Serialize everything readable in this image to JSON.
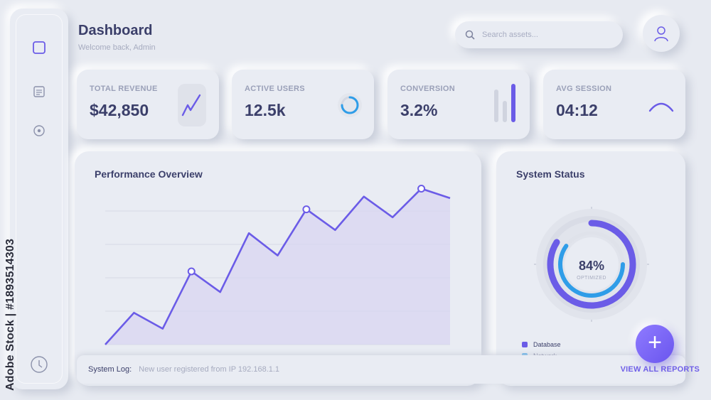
{
  "header": {
    "title": "Dashboard",
    "subtitle": "Welcome back, Admin",
    "search_placeholder": "Search assets..."
  },
  "watermark": "Adobe Stock | #1893514303",
  "sidebar": {
    "items": [
      {
        "icon": "square-icon",
        "active": true
      },
      {
        "icon": "document-icon",
        "active": false
      },
      {
        "icon": "target-icon",
        "active": false
      }
    ],
    "bottom_icon": "clock-icon"
  },
  "stats": [
    {
      "label": "TOTAL REVENUE",
      "value": "$42,850"
    },
    {
      "label": "ACTIVE USERS",
      "value": "12.5k"
    },
    {
      "label": "CONVERSION",
      "value": "3.2%"
    },
    {
      "label": "AVG SESSION",
      "value": "04:12"
    }
  ],
  "performance": {
    "title": "Performance Overview",
    "chart_data": {
      "type": "area",
      "series": [
        {
          "values": [
            0,
            20,
            10,
            46,
            33,
            70,
            56,
            85,
            72,
            93,
            80,
            98,
            92
          ]
        }
      ],
      "marked_points": [
        3,
        7,
        11
      ],
      "ylim": [
        0,
        100
      ],
      "grid": true,
      "color": "#6b5ce7"
    }
  },
  "status": {
    "title": "System Status",
    "gauge_value": "84%",
    "gauge_label": "OPTIMIZED",
    "gauge_fraction": 0.84,
    "legend": [
      {
        "label": "Database",
        "color": "#6b5ce7"
      },
      {
        "label": "Network",
        "color": "#2f9de8"
      }
    ]
  },
  "log": {
    "label": "System Log:",
    "message": "New user registered from IP 192.168.1.1",
    "link": "VIEW ALL REPORTS"
  },
  "fab_label": "+",
  "colors": {
    "accent": "#6b5ce7",
    "accent_blue": "#2f9de8",
    "background": "#e7eaf1"
  }
}
